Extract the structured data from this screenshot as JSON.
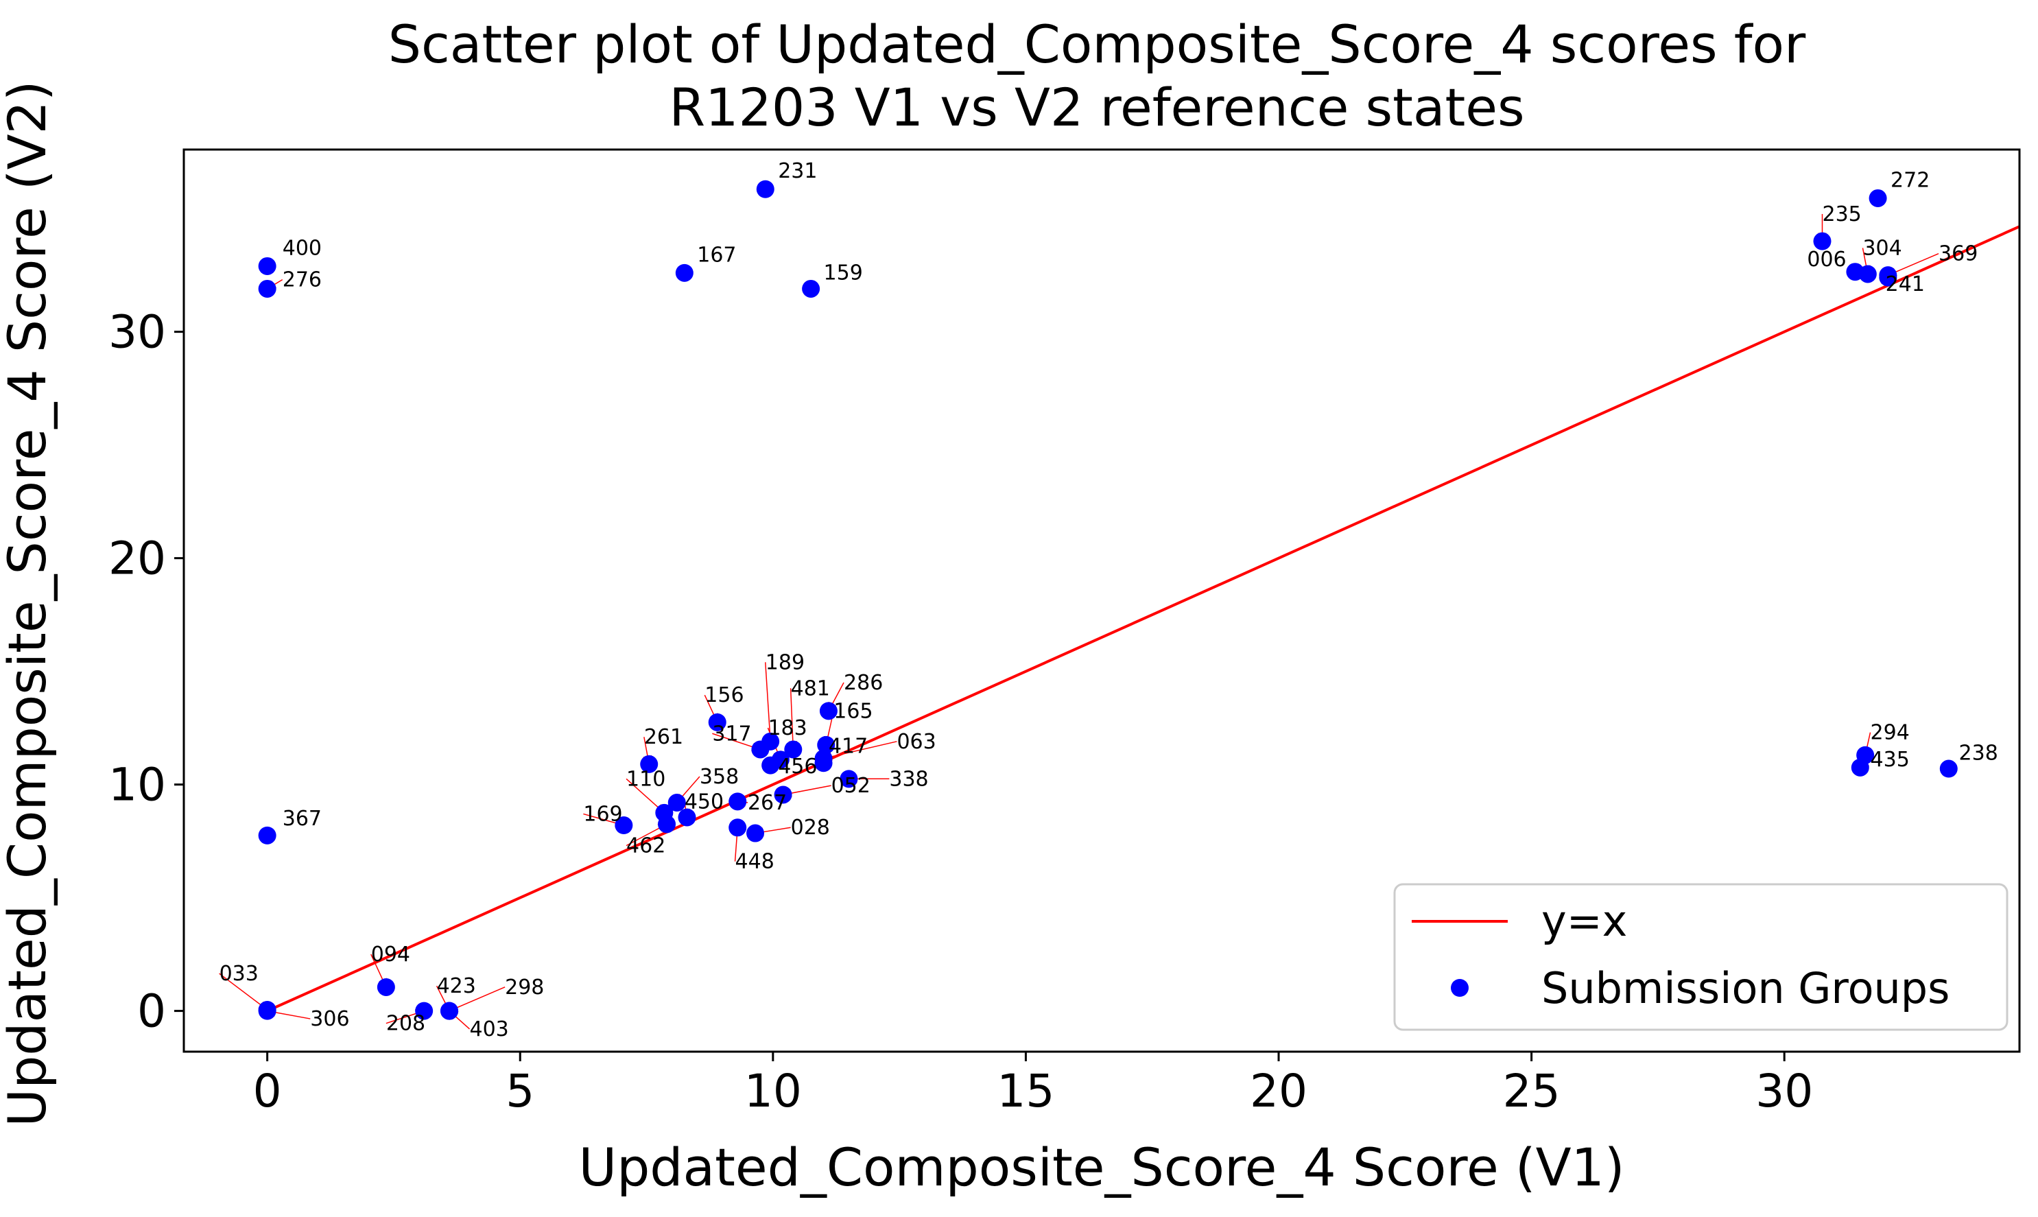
{
  "chart_data": {
    "type": "scatter",
    "title": [
      "Scatter plot of Updated_Composite_Score_4 scores for",
      "R1203 V1 vs V2 reference states"
    ],
    "xlabel": "Updated_Composite_Score_4 Score (V1)",
    "ylabel": "Updated_Composite_Score_4 Score (V2)",
    "xlim": [
      -1.65,
      34.65
    ],
    "ylim": [
      -1.8,
      38.05
    ],
    "xticks": [
      0,
      5,
      10,
      15,
      20,
      25,
      30
    ],
    "yticks": [
      0,
      10,
      20,
      30
    ],
    "grid": false,
    "legend": {
      "placement": "lower-right",
      "entries": [
        {
          "label": "y=x",
          "kind": "line",
          "color": "#ff0000"
        },
        {
          "label": "Submission Groups",
          "kind": "marker",
          "color": "#0000ff"
        }
      ]
    },
    "series": [
      {
        "name": "y=x",
        "kind": "line",
        "color": "#ff0000",
        "x": [
          0,
          34.65
        ],
        "y": [
          0,
          34.65
        ]
      },
      {
        "name": "Submission Groups",
        "kind": "scatter",
        "color": "#0000ff",
        "points": [
          {
            "label": "400",
            "x": 0.0,
            "y": 32.9,
            "lx": 0.3,
            "ly": 33.4,
            "arrow": false
          },
          {
            "label": "276",
            "x": 0.0,
            "y": 31.9,
            "lx": 0.3,
            "ly": 32.0,
            "arrow": true
          },
          {
            "label": "231",
            "x": 9.85,
            "y": 36.3,
            "lx": 10.1,
            "ly": 36.8,
            "arrow": false
          },
          {
            "label": "167",
            "x": 8.25,
            "y": 32.6,
            "lx": 8.5,
            "ly": 33.1,
            "arrow": false
          },
          {
            "label": "159",
            "x": 10.75,
            "y": 31.9,
            "lx": 11.0,
            "ly": 32.3,
            "arrow": false
          },
          {
            "label": "367",
            "x": 0.0,
            "y": 7.75,
            "lx": 0.3,
            "ly": 8.2,
            "arrow": false
          },
          {
            "label": "033",
            "x": 0.0,
            "y": 0.05,
            "lx": -0.95,
            "ly": 1.35,
            "arrow": true
          },
          {
            "label": "306",
            "x": 0.0,
            "y": 0.0,
            "lx": 0.85,
            "ly": -0.65,
            "arrow": true
          },
          {
            "label": "094",
            "x": 2.35,
            "y": 1.05,
            "lx": 2.05,
            "ly": 2.2,
            "arrow": true
          },
          {
            "label": "208",
            "x": 3.1,
            "y": 0.0,
            "lx": 2.35,
            "ly": -0.85,
            "arrow": true
          },
          {
            "label": "423",
            "x": 3.6,
            "y": 0.0,
            "lx": 3.35,
            "ly": 0.8,
            "arrow": true
          },
          {
            "label": "298",
            "x": 3.6,
            "y": 0.0,
            "lx": 4.7,
            "ly": 0.75,
            "arrow": true
          },
          {
            "label": "403",
            "x": 3.6,
            "y": 0.0,
            "lx": 4.0,
            "ly": -1.1,
            "arrow": true
          },
          {
            "label": "169",
            "x": 7.05,
            "y": 8.2,
            "lx": 6.25,
            "ly": 8.4,
            "arrow": true
          },
          {
            "label": "261",
            "x": 7.55,
            "y": 10.9,
            "lx": 7.45,
            "ly": 11.8,
            "arrow": true
          },
          {
            "label": "110",
            "x": 7.85,
            "y": 8.75,
            "lx": 7.1,
            "ly": 9.95,
            "arrow": true
          },
          {
            "label": "358",
            "x": 8.1,
            "y": 9.2,
            "lx": 8.55,
            "ly": 10.05,
            "arrow": true
          },
          {
            "label": "450",
            "x": 8.3,
            "y": 8.55,
            "lx": 8.25,
            "ly": 8.95,
            "arrow": true
          },
          {
            "label": "462",
            "x": 7.9,
            "y": 8.25,
            "lx": 7.1,
            "ly": 7.0,
            "arrow": true
          },
          {
            "label": "156",
            "x": 8.9,
            "y": 12.75,
            "lx": 8.65,
            "ly": 13.65,
            "arrow": true
          },
          {
            "label": "317",
            "x": 9.75,
            "y": 11.55,
            "lx": 8.8,
            "ly": 11.95,
            "arrow": true
          },
          {
            "label": "189",
            "x": 9.95,
            "y": 11.9,
            "lx": 9.85,
            "ly": 15.1,
            "arrow": true
          },
          {
            "label": "481",
            "x": 10.4,
            "y": 11.55,
            "lx": 10.35,
            "ly": 13.95,
            "arrow": true
          },
          {
            "label": "183",
            "x": 10.15,
            "y": 11.1,
            "lx": 9.9,
            "ly": 12.2,
            "arrow": true
          },
          {
            "label": "286",
            "x": 11.1,
            "y": 13.25,
            "lx": 11.4,
            "ly": 14.2,
            "arrow": true
          },
          {
            "label": "165",
            "x": 11.05,
            "y": 11.75,
            "lx": 11.2,
            "ly": 12.95,
            "arrow": true
          },
          {
            "label": "063",
            "x": 11.0,
            "y": 11.15,
            "lx": 12.45,
            "ly": 11.6,
            "arrow": true
          },
          {
            "label": "417",
            "x": 11.0,
            "y": 10.95,
            "lx": 11.1,
            "ly": 11.4,
            "arrow": true
          },
          {
            "label": "456",
            "x": 9.95,
            "y": 10.85,
            "lx": 10.1,
            "ly": 10.5,
            "arrow": true
          },
          {
            "label": "338",
            "x": 11.5,
            "y": 10.25,
            "lx": 12.3,
            "ly": 9.95,
            "arrow": true
          },
          {
            "label": "052",
            "x": 10.2,
            "y": 9.55,
            "lx": 11.15,
            "ly": 9.65,
            "arrow": true
          },
          {
            "label": "267",
            "x": 9.3,
            "y": 9.25,
            "lx": 9.5,
            "ly": 8.9,
            "arrow": true
          },
          {
            "label": "028",
            "x": 9.65,
            "y": 7.85,
            "lx": 10.35,
            "ly": 7.8,
            "arrow": true
          },
          {
            "label": "448",
            "x": 9.3,
            "y": 8.1,
            "lx": 9.25,
            "ly": 6.3,
            "arrow": true
          },
          {
            "label": "272",
            "x": 31.85,
            "y": 35.9,
            "lx": 32.1,
            "ly": 36.4,
            "arrow": false
          },
          {
            "label": "235",
            "x": 30.75,
            "y": 34.0,
            "lx": 30.75,
            "ly": 34.9,
            "arrow": true
          },
          {
            "label": "304",
            "x": 31.65,
            "y": 32.55,
            "lx": 31.55,
            "ly": 33.4,
            "arrow": true
          },
          {
            "label": "006",
            "x": 31.4,
            "y": 32.65,
            "lx": 30.45,
            "ly": 32.9,
            "arrow": false
          },
          {
            "label": "369",
            "x": 32.05,
            "y": 32.5,
            "lx": 33.05,
            "ly": 33.15,
            "arrow": true
          },
          {
            "label": "241",
            "x": 32.05,
            "y": 32.4,
            "lx": 32.0,
            "ly": 31.8,
            "arrow": true
          },
          {
            "label": "294",
            "x": 31.6,
            "y": 11.3,
            "lx": 31.7,
            "ly": 12.0,
            "arrow": true
          },
          {
            "label": "435",
            "x": 31.5,
            "y": 10.75,
            "lx": 31.7,
            "ly": 10.8,
            "arrow": true
          },
          {
            "label": "238",
            "x": 33.25,
            "y": 10.7,
            "lx": 33.45,
            "ly": 11.1,
            "arrow": false
          }
        ]
      }
    ]
  }
}
